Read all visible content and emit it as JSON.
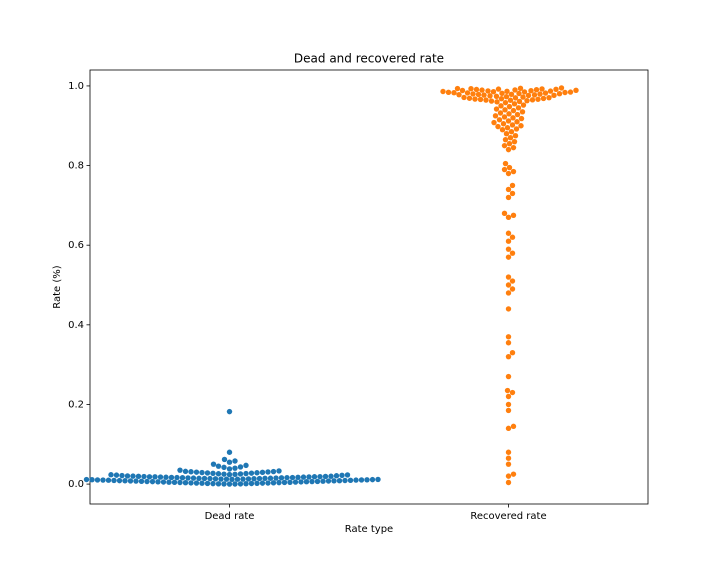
{
  "chart_data": {
    "type": "swarm",
    "title": "Dead and recovered rate",
    "x_label": "Rate type",
    "y_label": "Rate (%)",
    "categories": [
      "Dead rate",
      "Recovered rate"
    ],
    "colors": [
      "#1f77b4",
      "#ff7f0e"
    ],
    "values": [
      [
        0.0,
        0.001,
        0.002,
        0.003,
        0.004,
        0.005,
        0.006,
        0.007,
        0.008,
        0.009,
        0.01,
        0.011,
        0.012,
        0.013,
        0.014,
        0.015,
        0.016,
        0.017,
        0.018,
        0.019,
        0.0005,
        0.0015,
        0.0025,
        0.0035,
        0.0045,
        0.0055,
        0.0065,
        0.0075,
        0.0085,
        0.0095,
        0.0105,
        0.0115,
        0.0125,
        0.0135,
        0.0145,
        0.0155,
        0.0165,
        0.0175,
        0.0185,
        0.0195,
        0.0002,
        0.0012,
        0.0022,
        0.0032,
        0.0042,
        0.0052,
        0.0062,
        0.0072,
        0.0082,
        0.0092,
        0.0102,
        0.0112,
        0.0122,
        0.0132,
        0.0142,
        0.0152,
        0.0162,
        0.0172,
        0.0182,
        0.0192,
        0.0007,
        0.0017,
        0.0027,
        0.0037,
        0.0047,
        0.0057,
        0.0067,
        0.0077,
        0.0087,
        0.0097,
        0.0107,
        0.0117,
        0.0127,
        0.0137,
        0.0147,
        0.0157,
        0.0167,
        0.0177,
        0.0187,
        0.0197,
        0.0004,
        0.0024,
        0.0044,
        0.0064,
        0.0084,
        0.0104,
        0.0124,
        0.0144,
        0.0164,
        0.0184,
        0.02,
        0.021,
        0.022,
        0.023,
        0.024,
        0.025,
        0.026,
        0.027,
        0.028,
        0.029,
        0.03,
        0.031,
        0.032,
        0.033,
        0.0205,
        0.0215,
        0.0225,
        0.0235,
        0.0245,
        0.0255,
        0.0265,
        0.0275,
        0.0285,
        0.0295,
        0.0305,
        0.0315,
        0.035,
        0.038,
        0.04,
        0.042,
        0.043,
        0.045,
        0.047,
        0.05,
        0.055,
        0.058,
        0.062,
        0.08,
        0.182
      ],
      [
        0.985,
        0.986,
        0.987,
        0.988,
        0.989,
        0.99,
        0.991,
        0.992,
        0.993,
        0.994,
        0.995,
        0.984,
        0.983,
        0.982,
        0.981,
        0.98,
        0.979,
        0.978,
        0.977,
        0.976,
        0.9855,
        0.9865,
        0.9875,
        0.9885,
        0.9895,
        0.9905,
        0.9915,
        0.9925,
        0.9935,
        0.9845,
        0.9835,
        0.9825,
        0.9815,
        0.9805,
        0.9795,
        0.9785,
        0.9775,
        0.9765,
        0.975,
        0.974,
        0.973,
        0.972,
        0.971,
        0.97,
        0.969,
        0.968,
        0.967,
        0.966,
        0.965,
        0.964,
        0.963,
        0.962,
        0.961,
        0.96,
        0.9705,
        0.9685,
        0.9665,
        0.9645,
        0.958,
        0.955,
        0.952,
        0.95,
        0.948,
        0.945,
        0.942,
        0.94,
        0.938,
        0.935,
        0.932,
        0.93,
        0.928,
        0.925,
        0.922,
        0.92,
        0.918,
        0.915,
        0.912,
        0.91,
        0.908,
        0.905,
        0.902,
        0.9,
        0.898,
        0.895,
        0.892,
        0.89,
        0.885,
        0.88,
        0.875,
        0.87,
        0.865,
        0.86,
        0.855,
        0.85,
        0.845,
        0.84,
        0.805,
        0.795,
        0.79,
        0.785,
        0.78,
        0.75,
        0.74,
        0.73,
        0.72,
        0.68,
        0.675,
        0.67,
        0.63,
        0.62,
        0.61,
        0.59,
        0.58,
        0.57,
        0.52,
        0.51,
        0.5,
        0.49,
        0.48,
        0.44,
        0.37,
        0.355,
        0.33,
        0.32,
        0.27,
        0.235,
        0.23,
        0.22,
        0.2,
        0.185,
        0.145,
        0.14,
        0.08,
        0.065,
        0.05,
        0.025,
        0.02,
        0.004
      ]
    ],
    "ylim": [
      -0.05,
      1.04
    ],
    "yticks": [
      {
        "value": 0.0,
        "label": "0.0"
      },
      0.2,
      0.4,
      0.6,
      0.8,
      {
        "value": 1.0,
        "label": "1.0"
      }
    ]
  }
}
